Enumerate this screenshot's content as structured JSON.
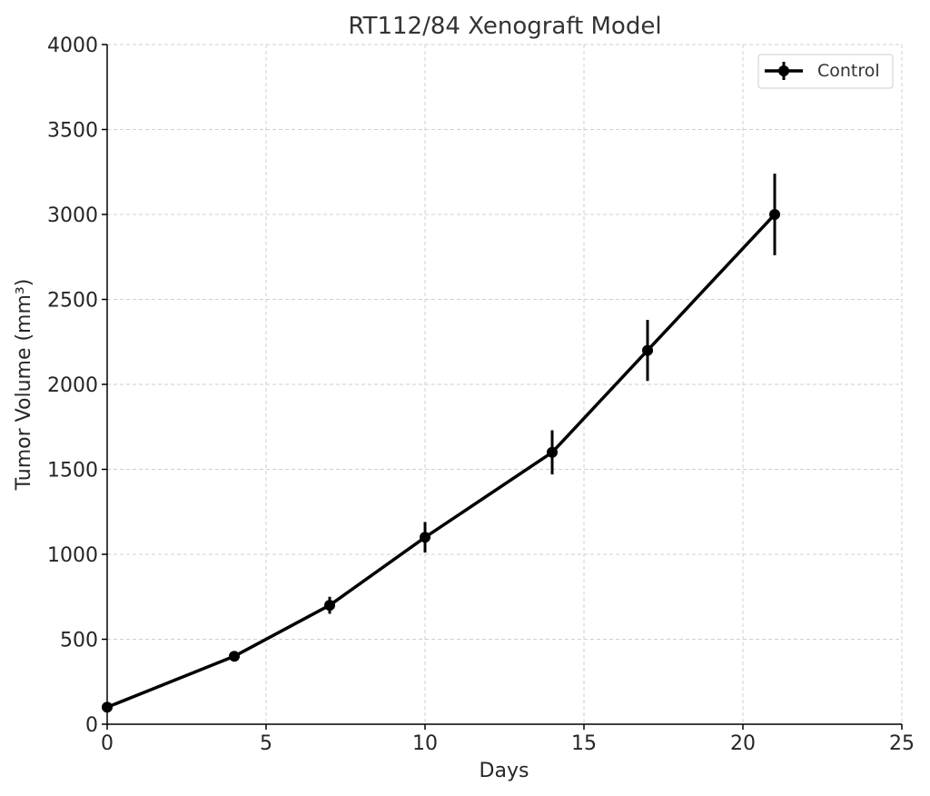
{
  "chart_data": {
    "type": "line",
    "title": "RT112/84 Xenograft Model",
    "xlabel": "Days",
    "ylabel": "Tumor Volume (mm³)",
    "xlim": [
      0,
      25
    ],
    "ylim": [
      0,
      4000
    ],
    "x_ticks": [
      0,
      5,
      10,
      15,
      20,
      25
    ],
    "y_ticks": [
      0,
      500,
      1000,
      1500,
      2000,
      2500,
      3000,
      3500,
      4000
    ],
    "grid": true,
    "legend_position": "top-right",
    "series": [
      {
        "name": "Control",
        "color": "#000000",
        "marker": "circle",
        "x": [
          0,
          4,
          7,
          10,
          14,
          17,
          21
        ],
        "y": [
          100,
          400,
          700,
          1100,
          1600,
          2200,
          3000
        ],
        "error": [
          0,
          0,
          50,
          90,
          130,
          180,
          240
        ]
      }
    ]
  }
}
